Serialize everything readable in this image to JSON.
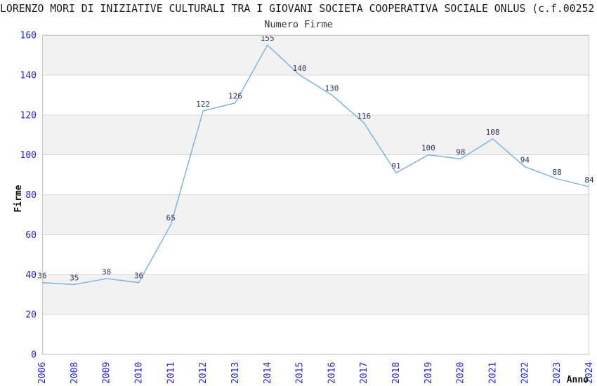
{
  "header": {
    "title": "LORENZO MORI DI INIZIATIVE CULTURALI TRA I GIOVANI SOCIETA COOPERATIVA SOCIALE ONLUS (c.f.00252",
    "subtitle": "Numero Firme"
  },
  "chart_data": {
    "type": "line",
    "title": "Numero Firme",
    "categories": [
      "2006",
      "2008",
      "2009",
      "2010",
      "2011",
      "2012",
      "2013",
      "2014",
      "2015",
      "2016",
      "2017",
      "2018",
      "2019",
      "2020",
      "2021",
      "2022",
      "2023",
      "2024"
    ],
    "values": [
      36,
      35,
      38,
      36,
      65,
      122,
      126,
      155,
      140,
      130,
      116,
      91,
      100,
      98,
      108,
      94,
      88,
      84
    ],
    "xlabel": "Anno",
    "ylabel": "Firme",
    "ylim": [
      0,
      160
    ],
    "ytick_step": 20,
    "yticks": [
      0,
      20,
      40,
      60,
      80,
      100,
      120,
      140,
      160
    ],
    "legend": "none",
    "grid": "alternating-horizontal-bands",
    "show_point_labels": true,
    "colors": {
      "line": "#79afe1",
      "band": "#f2f2f2",
      "plot_background": "#ffffff",
      "grid_line": "#d8d8d8",
      "plot_border": "#c8c8c8",
      "tick_label": "#2323cc",
      "data_label": "#333366",
      "title_text": "#1a1a1a"
    }
  }
}
